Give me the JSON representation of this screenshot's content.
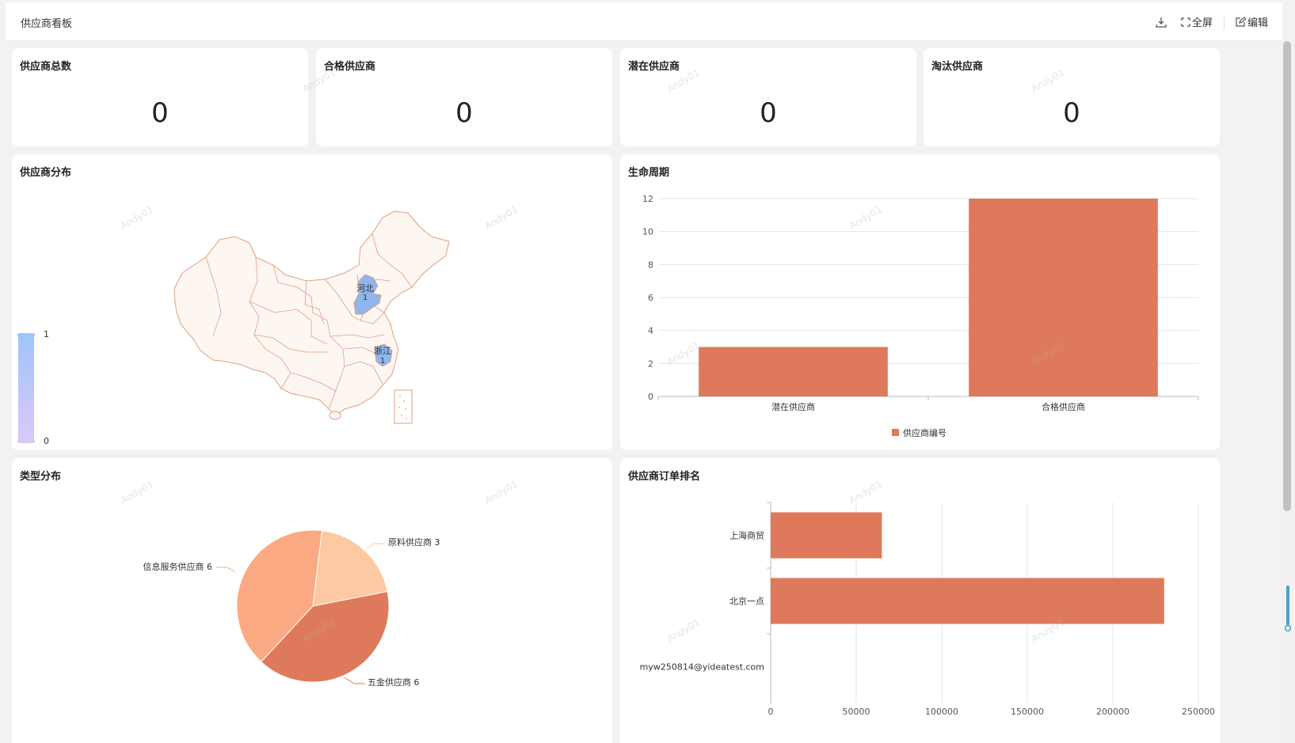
{
  "header": {
    "title": "供应商看板",
    "download_icon": "download-icon",
    "fullscreen_label": "全屏",
    "edit_label": "编辑"
  },
  "stats": [
    {
      "label": "供应商总数",
      "value": "0"
    },
    {
      "label": "合格供应商",
      "value": "0"
    },
    {
      "label": "潜在供应商",
      "value": "0"
    },
    {
      "label": "淘汰供应商",
      "value": "0"
    }
  ],
  "map_card": {
    "title": "供应商分布",
    "visual_max": "1",
    "visual_min": "0",
    "regions": [
      {
        "name": "河北",
        "value": "1"
      },
      {
        "name": "浙江",
        "value": "1"
      }
    ],
    "colors": {
      "fill": "#fdf6f1",
      "border": "#e0a080",
      "highlight": "#8fb5ee"
    }
  },
  "lifecycle_card": {
    "title": "生命周期",
    "chart_data": {
      "type": "bar",
      "categories": [
        "潜在供应商",
        "合格供应商"
      ],
      "series": [
        {
          "name": "供应商编号",
          "values": [
            3,
            12
          ]
        }
      ],
      "ylim": [
        0,
        12
      ],
      "yticks": [
        "0",
        "2",
        "4",
        "6",
        "8",
        "10",
        "12"
      ],
      "legend_position": "bottom",
      "color": "#de7a5b"
    }
  },
  "type_card": {
    "title": "类型分布",
    "chart_data": {
      "type": "pie",
      "slices": [
        {
          "label": "原料供应商 3",
          "value": 3,
          "color": "#fdc9a2"
        },
        {
          "label": "五金供应商 6",
          "value": 6,
          "color": "#de7a5b"
        },
        {
          "label": "信息服务供应商 6",
          "value": 6,
          "color": "#fba983"
        }
      ]
    }
  },
  "ranking_card": {
    "title": "供应商订单排名",
    "chart_data": {
      "type": "bar",
      "orientation": "horizontal",
      "categories": [
        "上海商贸",
        "北京一点",
        "myw250814@yideatest.com"
      ],
      "values": [
        65000,
        230000,
        0
      ],
      "xlim": [
        0,
        250000
      ],
      "xticks": [
        "0",
        "50000",
        "100000",
        "150000",
        "200000",
        "250000"
      ],
      "color": "#de7a5b"
    }
  },
  "watermark_text": "Andy01"
}
